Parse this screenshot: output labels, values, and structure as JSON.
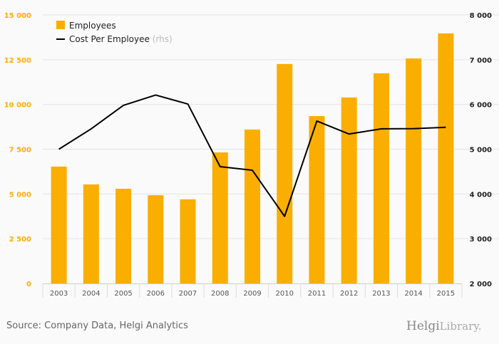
{
  "chart_data": {
    "type": "bar+line",
    "categories": [
      "2003",
      "2004",
      "2005",
      "2006",
      "2007",
      "2008",
      "2009",
      "2010",
      "2011",
      "2012",
      "2013",
      "2014",
      "2015"
    ],
    "series": [
      {
        "name": "Employees",
        "type": "bar",
        "axis": "left",
        "color": "#f9ae00",
        "values": [
          6530,
          5530,
          5290,
          4930,
          4700,
          7320,
          8600,
          12260,
          9350,
          10390,
          11740,
          12570,
          13970
        ]
      },
      {
        "name": "Cost Per Employee",
        "suffix": "(rhs)",
        "type": "line",
        "axis": "right",
        "color": "#000000",
        "values": [
          5000,
          5455,
          5980,
          6210,
          6010,
          4610,
          4530,
          3500,
          5630,
          5340,
          5455,
          5460,
          5490
        ]
      }
    ],
    "left_axis": {
      "min": 0,
      "max": 15000,
      "ticks": [
        "0",
        "2 500",
        "5 000",
        "7 500",
        "10 000",
        "12 500",
        "15 000"
      ],
      "tick_values": [
        0,
        2500,
        5000,
        7500,
        10000,
        12500,
        15000
      ],
      "color": "#f9ae00"
    },
    "right_axis": {
      "min": 2000,
      "max": 8000,
      "ticks": [
        "2 000",
        "3 000",
        "4 000",
        "5 000",
        "6 000",
        "7 000",
        "8 000"
      ],
      "tick_values": [
        2000,
        3000,
        4000,
        5000,
        6000,
        7000,
        8000
      ],
      "color": "#000000"
    },
    "grid": true,
    "legend_position": "top-left"
  },
  "footer": {
    "source": "Source: Company Data, Helgi Analytics",
    "logo_bold": "Helgi",
    "logo_light": "Library."
  }
}
